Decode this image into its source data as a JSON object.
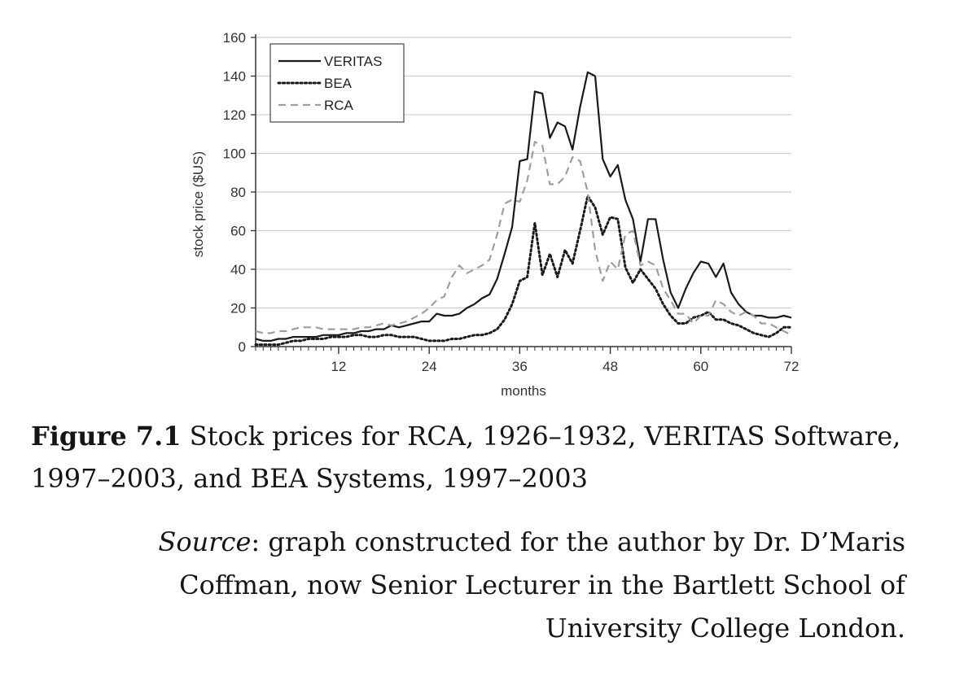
{
  "chart_data": {
    "type": "line",
    "xlabel": "months",
    "ylabel": "stock price ($US)",
    "xlim": [
      1,
      72
    ],
    "ylim": [
      0,
      160
    ],
    "x_ticks": [
      12,
      24,
      36,
      48,
      60,
      72
    ],
    "y_ticks": [
      0,
      20,
      40,
      60,
      80,
      100,
      120,
      140,
      160
    ],
    "grid": "horizontal",
    "legend_position": "top-left",
    "series": [
      {
        "name": "VERITAS",
        "style": "solid",
        "color": "#1a1a1a",
        "x": [
          1,
          2,
          3,
          4,
          5,
          6,
          7,
          8,
          9,
          10,
          11,
          12,
          13,
          14,
          15,
          16,
          17,
          18,
          19,
          20,
          21,
          22,
          23,
          24,
          25,
          26,
          27,
          28,
          29,
          30,
          31,
          32,
          33,
          34,
          35,
          36,
          37,
          38,
          39,
          40,
          41,
          42,
          43,
          44,
          45,
          46,
          47,
          48,
          49,
          50,
          51,
          52,
          53,
          54,
          55,
          56,
          57,
          58,
          59,
          60,
          61,
          62,
          63,
          64,
          65,
          66,
          67,
          68,
          69,
          70,
          71,
          72
        ],
        "values": [
          4,
          3,
          3,
          4,
          4,
          5,
          5,
          5,
          5,
          6,
          6,
          6,
          7,
          7,
          8,
          8,
          9,
          9,
          11,
          10,
          11,
          12,
          13,
          13,
          17,
          16,
          16,
          17,
          20,
          22,
          25,
          27,
          35,
          48,
          62,
          96,
          97,
          132,
          131,
          108,
          116,
          114,
          102,
          124,
          142,
          140,
          97,
          88,
          94,
          76,
          66,
          44,
          66,
          66,
          45,
          28,
          20,
          30,
          38,
          44,
          43,
          36,
          43,
          28,
          22,
          18,
          16,
          16,
          15,
          15,
          16,
          15
        ]
      },
      {
        "name": "BEA",
        "style": "dotted",
        "color": "#1a1a1a",
        "x": [
          1,
          2,
          3,
          4,
          5,
          6,
          7,
          8,
          9,
          10,
          11,
          12,
          13,
          14,
          15,
          16,
          17,
          18,
          19,
          20,
          21,
          22,
          23,
          24,
          25,
          26,
          27,
          28,
          29,
          30,
          31,
          32,
          33,
          34,
          35,
          36,
          37,
          38,
          39,
          40,
          41,
          42,
          43,
          44,
          45,
          46,
          47,
          48,
          49,
          50,
          51,
          52,
          53,
          54,
          55,
          56,
          57,
          58,
          59,
          60,
          61,
          62,
          63,
          64,
          65,
          66,
          67,
          68,
          69,
          70,
          71,
          72
        ],
        "values": [
          1,
          1,
          1,
          1,
          2,
          3,
          3,
          4,
          4,
          4,
          5,
          5,
          5,
          6,
          6,
          5,
          5,
          6,
          6,
          5,
          5,
          5,
          4,
          3,
          3,
          3,
          4,
          4,
          5,
          6,
          6,
          7,
          9,
          14,
          22,
          34,
          36,
          64,
          37,
          48,
          36,
          50,
          43,
          60,
          78,
          72,
          58,
          67,
          66,
          41,
          33,
          40,
          35,
          30,
          22,
          16,
          12,
          12,
          15,
          16,
          18,
          14,
          14,
          12,
          11,
          9,
          7,
          6,
          5,
          7,
          10,
          10
        ]
      },
      {
        "name": "RCA",
        "style": "dashed",
        "color": "#9e9e9e",
        "x": [
          1,
          2,
          3,
          4,
          5,
          6,
          7,
          8,
          9,
          10,
          11,
          12,
          13,
          14,
          15,
          16,
          17,
          18,
          19,
          20,
          21,
          22,
          23,
          24,
          25,
          26,
          27,
          28,
          29,
          30,
          31,
          32,
          33,
          34,
          35,
          36,
          37,
          38,
          39,
          40,
          41,
          42,
          43,
          44,
          45,
          46,
          47,
          48,
          49,
          50,
          51,
          52,
          53,
          54,
          55,
          56,
          57,
          58,
          59,
          60,
          61,
          62,
          63,
          64,
          65,
          66,
          67,
          68,
          69,
          70,
          71,
          72
        ],
        "values": [
          8,
          7,
          7,
          8,
          8,
          9,
          10,
          10,
          10,
          9,
          9,
          9,
          9,
          9,
          10,
          10,
          11,
          12,
          11,
          12,
          13,
          15,
          17,
          20,
          24,
          26,
          36,
          42,
          38,
          40,
          42,
          45,
          58,
          74,
          76,
          75,
          86,
          106,
          104,
          84,
          84,
          88,
          98,
          96,
          80,
          50,
          34,
          44,
          40,
          58,
          60,
          42,
          44,
          42,
          30,
          24,
          17,
          17,
          12,
          16,
          16,
          24,
          22,
          18,
          16,
          18,
          16,
          12,
          12,
          10,
          8,
          6
        ]
      }
    ]
  },
  "caption": {
    "label": "Figure 7.1",
    "text": " Stock prices for RCA, 1926–1932, VERITAS Software, 1997–2003, and BEA Systems, 1997–2003"
  },
  "source": {
    "label": "Source",
    "text": ": graph constructed for the author by Dr. D’Maris Coffman, now Senior Lecturer in the Bartlett School of University College London."
  }
}
